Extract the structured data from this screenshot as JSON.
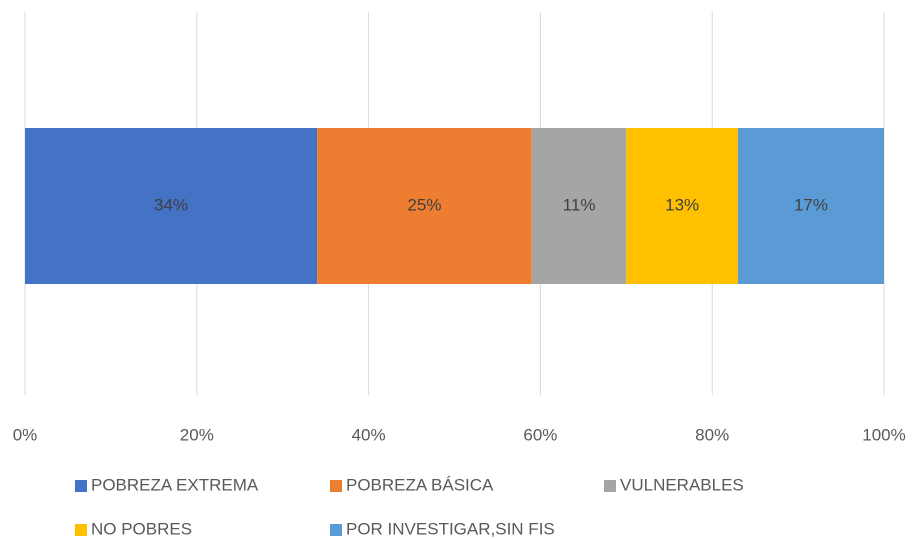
{
  "chart_data": {
    "type": "stacked_bar_horizontal",
    "categories": [
      null
    ],
    "series": [
      {
        "name": "POBREZA EXTREMA",
        "color": "#4472c4",
        "values": [
          34
        ],
        "value_labels": [
          "34%"
        ]
      },
      {
        "name": "POBREZA BÁSICA",
        "color": "#ed7d31",
        "values": [
          25
        ],
        "value_labels": [
          "25%"
        ]
      },
      {
        "name": "VULNERABLES",
        "color": "#a5a5a5",
        "values": [
          11
        ],
        "value_labels": [
          "11%"
        ]
      },
      {
        "name": "NO POBRES",
        "color": "#ffc000",
        "values": [
          13
        ],
        "value_labels": [
          "13%"
        ]
      },
      {
        "name": "POR INVESTIGAR,SIN FIS",
        "color": "#5b9bd5",
        "values": [
          17
        ],
        "value_labels": [
          "17%"
        ]
      }
    ],
    "xlim": [
      0,
      100
    ],
    "xticks": [
      {
        "value": 0,
        "label": "0%"
      },
      {
        "value": 20,
        "label": "20%"
      },
      {
        "value": 40,
        "label": "40%"
      },
      {
        "value": 60,
        "label": "60%"
      },
      {
        "value": 80,
        "label": "80%"
      },
      {
        "value": 100,
        "label": "100%"
      }
    ],
    "grid": true,
    "legend": "bottom"
  }
}
